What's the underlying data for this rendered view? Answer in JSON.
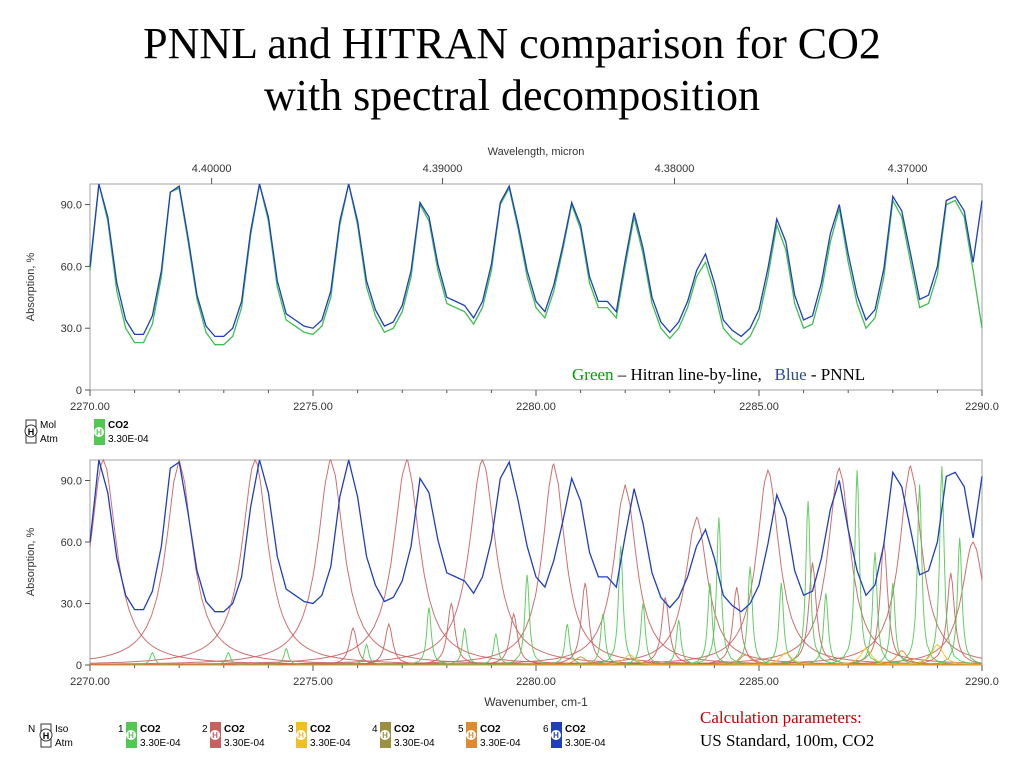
{
  "slide": {
    "title_line1": "PNNL and HITRAN comparison for CO2",
    "title_line2": "with spectral decomposition",
    "legend_note": {
      "green_word": "Green",
      "green_text": " – Hitran line-by-line,",
      "blue_word": "Blue",
      "blue_text": " - PNNL"
    },
    "calc_title": "Calculation parameters:",
    "calc_text": "US Standard, 100m, CO2"
  },
  "colors": {
    "pnnl": "#1f3fbf",
    "hitran": "#3fbf4f",
    "decomp_red": "#c96060",
    "decomp_green": "#52c852",
    "decomp_orange": "#e08a30",
    "decomp_yellow": "#f0c020",
    "green_label": "#00a000",
    "blue_label": "#2a4a9a",
    "calc_title": "#c00000"
  },
  "panels": {
    "top_header": {
      "mol": "Mol",
      "atm": "Atm",
      "species": "CO2",
      "conc": "3.30E-04",
      "badge": "H"
    },
    "bottom_header": {
      "n": "N",
      "iso": "Iso",
      "atm": "Atm",
      "items": [
        {
          "num": "1",
          "species": "CO2",
          "conc": "3.30E-04",
          "color": "#52c852",
          "badge": "H"
        },
        {
          "num": "2",
          "species": "CO2",
          "conc": "3.30E-04",
          "color": "#c96060",
          "badge": "H"
        },
        {
          "num": "3",
          "species": "CO2",
          "conc": "3.30E-04",
          "color": "#f0c020",
          "badge": "H"
        },
        {
          "num": "4",
          "species": "CO2",
          "conc": "3.30E-04",
          "color": "#9a9040",
          "badge": "H"
        },
        {
          "num": "5",
          "species": "CO2",
          "conc": "3.30E-04",
          "color": "#e08a30",
          "badge": "H"
        },
        {
          "num": "6",
          "species": "CO2",
          "conc": "3.30E-04",
          "color": "#1f3fbf",
          "badge": "H"
        }
      ]
    }
  },
  "chart_data": [
    {
      "type": "line",
      "name": "top-comparison",
      "xlabel_top": "Wavelength, micron",
      "top_ticks": [
        "4.40000",
        "4.39000",
        "4.38000",
        "4.37000"
      ],
      "top_tick_values": [
        4.4,
        4.39,
        4.38,
        4.37
      ],
      "ylabel": "Absorption, %",
      "xlim": [
        2270,
        2290
      ],
      "ylim": [
        0,
        100
      ],
      "x_ticks": [
        "2270.00",
        "2275.00",
        "2280.00",
        "2285.00",
        "2290.0"
      ],
      "x_tick_values": [
        2270,
        2275,
        2280,
        2285,
        2290
      ],
      "y_ticks": [
        "0",
        "30.0",
        "60.0",
        "90.0"
      ],
      "y_tick_values": [
        0,
        30,
        60,
        90
      ],
      "series": [
        {
          "name": "Green – Hitran line-by-line",
          "key": "hitran",
          "x": [
            2270.0,
            2270.2,
            2270.4,
            2270.6,
            2270.8,
            2271.0,
            2271.2,
            2271.4,
            2271.6,
            2271.8,
            2272.0,
            2272.2,
            2272.4,
            2272.6,
            2272.8,
            2273.0,
            2273.2,
            2273.4,
            2273.6,
            2273.8,
            2274.0,
            2274.2,
            2274.4,
            2274.6,
            2274.8,
            2275.0,
            2275.2,
            2275.4,
            2275.6,
            2275.8,
            2276.0,
            2276.2,
            2276.4,
            2276.6,
            2276.8,
            2277.0,
            2277.2,
            2277.4,
            2277.6,
            2277.8,
            2278.0,
            2278.2,
            2278.4,
            2278.6,
            2278.8,
            2279.0,
            2279.2,
            2279.4,
            2279.6,
            2279.8,
            2280.0,
            2280.2,
            2280.4,
            2280.6,
            2280.8,
            2281.0,
            2281.2,
            2281.4,
            2281.6,
            2281.8,
            2282.0,
            2282.2,
            2282.4,
            2282.6,
            2282.8,
            2283.0,
            2283.2,
            2283.4,
            2283.6,
            2283.8,
            2284.0,
            2284.2,
            2284.4,
            2284.6,
            2284.8,
            2285.0,
            2285.2,
            2285.4,
            2285.6,
            2285.8,
            2286.0,
            2286.2,
            2286.4,
            2286.6,
            2286.8,
            2287.0,
            2287.2,
            2287.4,
            2287.6,
            2287.8,
            2288.0,
            2288.2,
            2288.4,
            2288.6,
            2288.8,
            2289.0,
            2289.2,
            2289.4,
            2289.6,
            2289.8,
            2290.0
          ],
          "y": [
            58,
            100,
            82,
            48,
            30,
            23,
            23,
            32,
            55,
            96,
            98,
            72,
            44,
            28,
            22,
            22,
            26,
            40,
            75,
            100,
            82,
            50,
            34,
            31,
            28,
            27,
            31,
            45,
            80,
            100,
            80,
            50,
            36,
            28,
            30,
            38,
            55,
            90,
            82,
            58,
            42,
            40,
            38,
            32,
            40,
            58,
            90,
            98,
            78,
            55,
            40,
            35,
            48,
            68,
            90,
            78,
            52,
            40,
            40,
            35,
            60,
            84,
            66,
            42,
            30,
            25,
            30,
            40,
            55,
            62,
            48,
            30,
            25,
            22,
            26,
            35,
            55,
            80,
            68,
            42,
            30,
            32,
            48,
            72,
            88,
            62,
            42,
            30,
            35,
            55,
            92,
            84,
            62,
            40,
            42,
            56,
            90,
            92,
            84,
            58,
            30
          ]
        },
        {
          "name": "Blue - PNNL",
          "key": "pnnl",
          "x": [
            2270.0,
            2270.2,
            2270.4,
            2270.6,
            2270.8,
            2271.0,
            2271.2,
            2271.4,
            2271.6,
            2271.8,
            2272.0,
            2272.2,
            2272.4,
            2272.6,
            2272.8,
            2273.0,
            2273.2,
            2273.4,
            2273.6,
            2273.8,
            2274.0,
            2274.2,
            2274.4,
            2274.6,
            2274.8,
            2275.0,
            2275.2,
            2275.4,
            2275.6,
            2275.8,
            2276.0,
            2276.2,
            2276.4,
            2276.6,
            2276.8,
            2277.0,
            2277.2,
            2277.4,
            2277.6,
            2277.8,
            2278.0,
            2278.2,
            2278.4,
            2278.6,
            2278.8,
            2279.0,
            2279.2,
            2279.4,
            2279.6,
            2279.8,
            2280.0,
            2280.2,
            2280.4,
            2280.6,
            2280.8,
            2281.0,
            2281.2,
            2281.4,
            2281.6,
            2281.8,
            2282.0,
            2282.2,
            2282.4,
            2282.6,
            2282.8,
            2283.0,
            2283.2,
            2283.4,
            2283.6,
            2283.8,
            2284.0,
            2284.2,
            2284.4,
            2284.6,
            2284.8,
            2285.0,
            2285.2,
            2285.4,
            2285.6,
            2285.8,
            2286.0,
            2286.2,
            2286.4,
            2286.6,
            2286.8,
            2287.0,
            2287.2,
            2287.4,
            2287.6,
            2287.8,
            2288.0,
            2288.2,
            2288.4,
            2288.6,
            2288.8,
            2289.0,
            2289.2,
            2289.4,
            2289.6,
            2289.8,
            2290.0
          ],
          "y": [
            60,
            100,
            84,
            52,
            34,
            27,
            27,
            36,
            58,
            96,
            99,
            74,
            46,
            31,
            26,
            26,
            30,
            43,
            77,
            100,
            84,
            53,
            37,
            34,
            31,
            30,
            34,
            48,
            82,
            100,
            82,
            53,
            39,
            31,
            33,
            41,
            58,
            91,
            84,
            61,
            45,
            43,
            41,
            35,
            43,
            61,
            91,
            99,
            80,
            58,
            43,
            38,
            51,
            70,
            91,
            80,
            55,
            43,
            43,
            38,
            63,
            86,
            69,
            45,
            33,
            28,
            33,
            43,
            58,
            66,
            52,
            34,
            29,
            26,
            30,
            39,
            59,
            83,
            72,
            46,
            34,
            36,
            52,
            76,
            90,
            66,
            46,
            34,
            39,
            59,
            94,
            87,
            66,
            44,
            46,
            60,
            92,
            94,
            87,
            62,
            92
          ]
        }
      ]
    },
    {
      "type": "line",
      "name": "bottom-decomposition",
      "xlabel": "Wavenumber, cm-1",
      "ylabel": "Absorption, %",
      "xlim": [
        2270,
        2290
      ],
      "ylim": [
        0,
        100
      ],
      "x_ticks": [
        "2270.00",
        "2275.00",
        "2280.00",
        "2285.00",
        "2290.0"
      ],
      "x_tick_values": [
        2270,
        2275,
        2280,
        2285,
        2290
      ],
      "y_ticks": [
        "0",
        "30.0",
        "60.0",
        "90.0"
      ],
      "y_tick_values": [
        0,
        30,
        60,
        90
      ],
      "pnnl_series_ref": "top-comparison.pnnl",
      "line_components": [
        {
          "iso": "2",
          "center": 2270.3,
          "height": 100,
          "width": 0.35
        },
        {
          "iso": "2",
          "center": 2272.0,
          "height": 100,
          "width": 0.35
        },
        {
          "iso": "2",
          "center": 2273.7,
          "height": 100,
          "width": 0.35
        },
        {
          "iso": "2",
          "center": 2275.4,
          "height": 100,
          "width": 0.35
        },
        {
          "iso": "2",
          "center": 2277.1,
          "height": 100,
          "width": 0.35
        },
        {
          "iso": "2",
          "center": 2278.8,
          "height": 100,
          "width": 0.35
        },
        {
          "iso": "2",
          "center": 2280.4,
          "height": 98,
          "width": 0.3
        },
        {
          "iso": "2",
          "center": 2282.0,
          "height": 88,
          "width": 0.3
        },
        {
          "iso": "2",
          "center": 2283.6,
          "height": 72,
          "width": 0.3
        },
        {
          "iso": "2",
          "center": 2285.2,
          "height": 95,
          "width": 0.3
        },
        {
          "iso": "2",
          "center": 2286.8,
          "height": 96,
          "width": 0.3
        },
        {
          "iso": "2",
          "center": 2288.4,
          "height": 97,
          "width": 0.3
        },
        {
          "iso": "2",
          "center": 2289.8,
          "height": 60,
          "width": 0.3
        },
        {
          "iso": "2",
          "center": 2275.9,
          "height": 18,
          "width": 0.1
        },
        {
          "iso": "2",
          "center": 2276.7,
          "height": 20,
          "width": 0.1
        },
        {
          "iso": "2",
          "center": 2278.1,
          "height": 30,
          "width": 0.1
        },
        {
          "iso": "2",
          "center": 2279.5,
          "height": 25,
          "width": 0.1
        },
        {
          "iso": "2",
          "center": 2281.1,
          "height": 40,
          "width": 0.1
        },
        {
          "iso": "2",
          "center": 2282.9,
          "height": 33,
          "width": 0.1
        },
        {
          "iso": "2",
          "center": 2284.5,
          "height": 38,
          "width": 0.1
        },
        {
          "iso": "2",
          "center": 2286.2,
          "height": 50,
          "width": 0.1
        },
        {
          "iso": "2",
          "center": 2287.8,
          "height": 60,
          "width": 0.1
        },
        {
          "iso": "2",
          "center": 2289.3,
          "height": 45,
          "width": 0.1
        },
        {
          "iso": "1",
          "center": 2271.4,
          "height": 6,
          "width": 0.06
        },
        {
          "iso": "1",
          "center": 2273.1,
          "height": 6,
          "width": 0.06
        },
        {
          "iso": "1",
          "center": 2274.4,
          "height": 8,
          "width": 0.06
        },
        {
          "iso": "1",
          "center": 2276.2,
          "height": 10,
          "width": 0.06
        },
        {
          "iso": "1",
          "center": 2277.6,
          "height": 28,
          "width": 0.06
        },
        {
          "iso": "1",
          "center": 2278.4,
          "height": 18,
          "width": 0.06
        },
        {
          "iso": "1",
          "center": 2279.1,
          "height": 15,
          "width": 0.06
        },
        {
          "iso": "1",
          "center": 2279.8,
          "height": 44,
          "width": 0.06
        },
        {
          "iso": "1",
          "center": 2280.7,
          "height": 20,
          "width": 0.06
        },
        {
          "iso": "1",
          "center": 2281.5,
          "height": 25,
          "width": 0.06
        },
        {
          "iso": "1",
          "center": 2281.9,
          "height": 58,
          "width": 0.06
        },
        {
          "iso": "1",
          "center": 2282.4,
          "height": 30,
          "width": 0.06
        },
        {
          "iso": "1",
          "center": 2283.2,
          "height": 22,
          "width": 0.06
        },
        {
          "iso": "1",
          "center": 2283.9,
          "height": 40,
          "width": 0.06
        },
        {
          "iso": "1",
          "center": 2284.1,
          "height": 72,
          "width": 0.06
        },
        {
          "iso": "1",
          "center": 2284.8,
          "height": 48,
          "width": 0.06
        },
        {
          "iso": "1",
          "center": 2285.5,
          "height": 40,
          "width": 0.06
        },
        {
          "iso": "1",
          "center": 2286.1,
          "height": 80,
          "width": 0.06
        },
        {
          "iso": "1",
          "center": 2286.5,
          "height": 35,
          "width": 0.06
        },
        {
          "iso": "1",
          "center": 2287.2,
          "height": 95,
          "width": 0.06
        },
        {
          "iso": "1",
          "center": 2287.6,
          "height": 55,
          "width": 0.06
        },
        {
          "iso": "1",
          "center": 2288.0,
          "height": 40,
          "width": 0.06
        },
        {
          "iso": "1",
          "center": 2288.6,
          "height": 88,
          "width": 0.06
        },
        {
          "iso": "1",
          "center": 2289.1,
          "height": 97,
          "width": 0.06
        },
        {
          "iso": "1",
          "center": 2289.5,
          "height": 62,
          "width": 0.06
        },
        {
          "iso": "3",
          "center": 2282.1,
          "height": 5,
          "width": 0.15
        },
        {
          "iso": "3",
          "center": 2285.6,
          "height": 6,
          "width": 0.15
        },
        {
          "iso": "3",
          "center": 2287.4,
          "height": 8,
          "width": 0.15
        },
        {
          "iso": "3",
          "center": 2289.0,
          "height": 10,
          "width": 0.15
        },
        {
          "iso": "5",
          "center": 2281.0,
          "height": 4,
          "width": 0.15
        },
        {
          "iso": "5",
          "center": 2284.7,
          "height": 5,
          "width": 0.15
        },
        {
          "iso": "5",
          "center": 2288.2,
          "height": 7,
          "width": 0.15
        }
      ]
    }
  ]
}
